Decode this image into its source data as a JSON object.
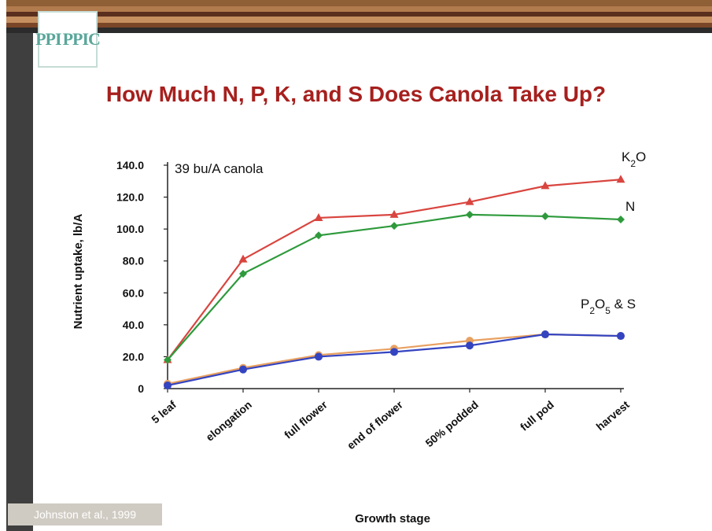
{
  "slide": {
    "logo_text": [
      "PPI",
      "PPIC"
    ],
    "citation": "Johnston et al., 1999",
    "stripe_colors": [
      "#8f5f36",
      "#b27b4e",
      "#5a2f1e",
      "#c58f60",
      "#7a4628",
      "#2b2b2b"
    ]
  },
  "chart_data": {
    "type": "line",
    "title": "How Much N, P, K, and S Does Canola Take Up?",
    "annotation": "39 bu/A canola",
    "xlabel": "Growth stage",
    "ylabel": "Nutrient uptake, lb/A",
    "ylim": [
      0,
      140
    ],
    "yticks": [
      "0",
      "20.0",
      "40.0",
      "60.0",
      "80.0",
      "100.0",
      "120.0",
      "140.0"
    ],
    "ytick_values": [
      0,
      20,
      40,
      60,
      80,
      100,
      120,
      140
    ],
    "categories": [
      "5 leaf",
      "elongation",
      "full flower",
      "end of flower",
      "50% podded",
      "full pod",
      "harvest"
    ],
    "grid": false,
    "series": [
      {
        "name": "K₂O",
        "color": "#d9453f",
        "marker": "triangle",
        "values": [
          18,
          81,
          107,
          109,
          117,
          127,
          131
        ]
      },
      {
        "name": "N",
        "color": "#2e9a3c",
        "marker": "diamond",
        "values": [
          18,
          72,
          96,
          102,
          109,
          108,
          106
        ]
      },
      {
        "name": "P₂O₅",
        "color": "#e8a060",
        "marker": "circle",
        "values": [
          3,
          13,
          21,
          25,
          30,
          34,
          33
        ]
      },
      {
        "name": "S",
        "color": "#3444c0",
        "marker": "circle",
        "values": [
          2,
          12,
          20,
          23,
          27,
          34,
          33
        ]
      }
    ],
    "series_labels": [
      {
        "text_parts": [
          [
            "K",
            "normal"
          ],
          [
            "2",
            "sub"
          ],
          [
            "O",
            "normal"
          ]
        ]
      },
      {
        "text_parts": [
          [
            "N",
            "normal"
          ]
        ]
      },
      {
        "text_parts": [
          [
            "P",
            "normal"
          ],
          [
            "2",
            "sub"
          ],
          [
            "O",
            "normal"
          ],
          [
            "5",
            "sub"
          ],
          [
            " & S",
            "normal"
          ]
        ]
      }
    ]
  }
}
